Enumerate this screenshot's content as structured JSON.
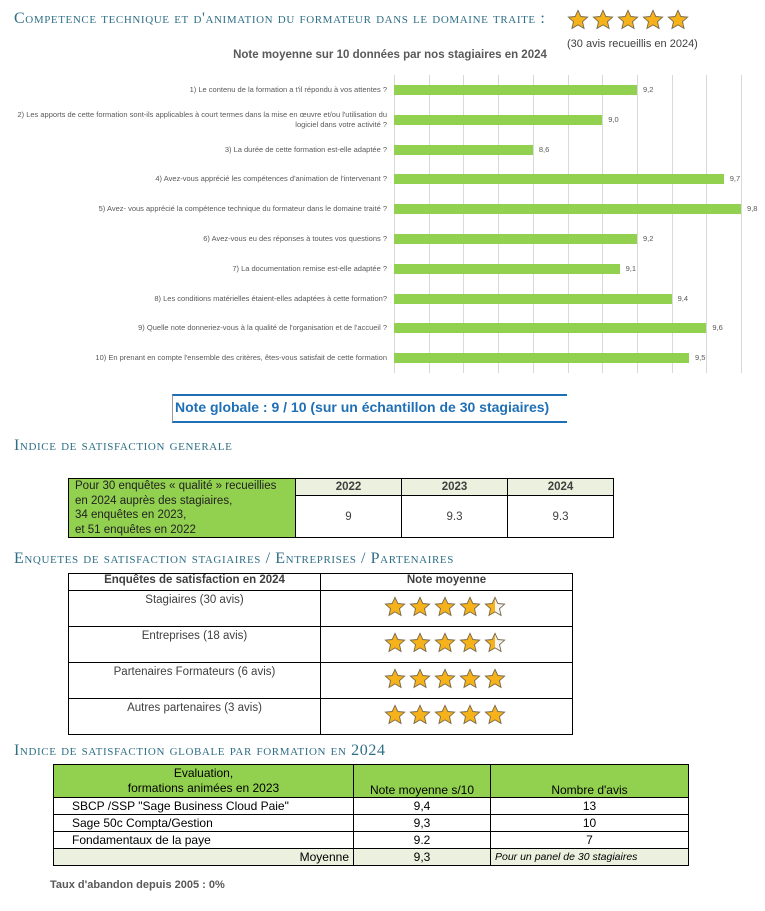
{
  "header": {
    "title": "Competence technique et d'animation du formateur dans le domaine traite :",
    "rating_stars": 5,
    "rating_note": "(30 avis recueillis en 2024)"
  },
  "chart_data": {
    "type": "bar",
    "orientation": "horizontal",
    "title": "Note moyenne sur 10 données par nos stagiaires en 2024",
    "categories": [
      "1) Le contenu de la formation a t'il répondu à vos attentes ?",
      "2) Les apports de cette formation sont-ils applicables à court termes dans la mise en œuvre et/ou l'utilisation du logiciel dans votre activité ?",
      "3) La durée de cette formation est-elle adaptée ?",
      "4) Avez-vous apprécié les compétences d'animation de l'intervenant ?",
      "5) Avez- vous apprécié la compétence technique du formateur dans le domaine traité ?",
      "6) Avez-vous eu des réponses  à toutes vos questions ?",
      "7) La documentation remise est-elle adaptée ?",
      "8) Les conditions matérielles étaient-elles adaptées à cette formation?",
      "9) Quelle note donneriez-vous à la qualité de l'organisation et de l'accueil ?",
      "10) En prenant en compte l'ensemble des critères, êtes-vous satisfait de cette formation"
    ],
    "values": [
      9.2,
      9.0,
      8.6,
      9.7,
      9.8,
      9.2,
      9.1,
      9.4,
      9.6,
      9.5
    ],
    "labels": [
      "9,2",
      "9,0",
      "8,6",
      "9,7",
      "9,8",
      "9,2",
      "9,1",
      "9,4",
      "9,6",
      "9,5"
    ],
    "xlim": [
      7.8,
      9.84
    ],
    "grid_step": 0.2,
    "grid": true,
    "bar_color": "#92d050"
  },
  "note_globale": "Note globale : 9 / 10 (sur un échantillon de 30 stagiaires)",
  "section1": {
    "title": "Indice de satisfaction generale",
    "description_lines": [
      "Pour 30 enquêtes « qualité » recueillies",
      "en 2024 auprès des stagiaires,",
      "34 enquêtes en 2023,",
      "et 51 enquêtes en 2022"
    ],
    "years": [
      "2022",
      "2023",
      "2024"
    ],
    "values": [
      "9",
      "9.3",
      "9.3"
    ]
  },
  "section2": {
    "title": "Enquetes de satisfaction stagiaires / Entreprises / Partenaires",
    "headers": [
      "Enquêtes de satisfaction en 2024",
      "Note moyenne"
    ],
    "rows": [
      {
        "label": "Stagiaires (30 avis)",
        "stars": 4.5
      },
      {
        "label": "Entreprises (18 avis)",
        "stars": 4.5
      },
      {
        "label": "Partenaires Formateurs (6 avis)",
        "stars": 5
      },
      {
        "label": "Autres partenaires (3 avis)",
        "stars": 5
      }
    ]
  },
  "section3": {
    "title": "Indice de satisfaction globale par formation en 2024",
    "headers": [
      "Evaluation,",
      "formations animées en 2023",
      "Note moyenne s/10",
      "Nombre d'avis"
    ],
    "rows": [
      [
        "SBCP /SSP \"Sage Business Cloud Paie\"",
        "9,4",
        "13"
      ],
      [
        "Sage 50c Compta/Gestion",
        "9,3",
        "10"
      ],
      [
        "Fondamentaux de la paye",
        "9.2",
        "7"
      ]
    ],
    "footer": [
      "Moyenne",
      "9,3",
      "Pour un panel de 30 stagiaires"
    ]
  },
  "abandon": "Taux d'abandon depuis 2005 : 0%",
  "colors": {
    "heading": "#2f6f86",
    "green": "#92d050",
    "light_green": "#ebf1de",
    "blue": "#1f6fb5",
    "star": "#f5b21b"
  }
}
